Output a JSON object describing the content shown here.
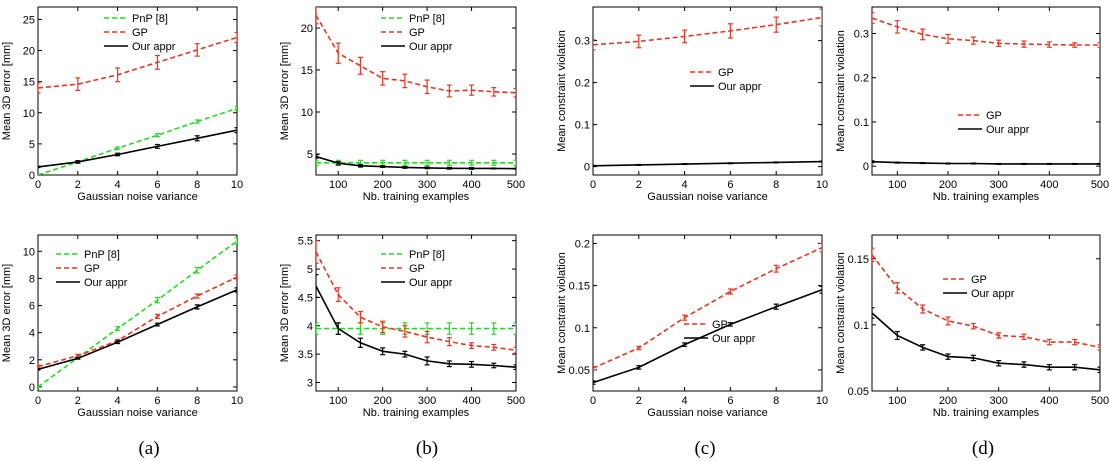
{
  "colors": {
    "pnp": "#22dd22",
    "gp": "#ee3322",
    "ours": "#000000"
  },
  "legend_labels": {
    "pnp": "PnP [8]",
    "gp": "GP",
    "ours": "Our appr"
  },
  "captions": [
    "(a)",
    "(b)",
    "(c)",
    "(d)"
  ],
  "chart_data": [
    {
      "type": "line",
      "xlabel": "Gaussian noise variance",
      "ylabel": "Mean 3D error [mm]",
      "xlim": [
        0,
        10
      ],
      "ylim": [
        0,
        27
      ],
      "xticks": [
        0,
        2,
        4,
        6,
        8,
        10
      ],
      "yticks": [
        0,
        5,
        10,
        15,
        20,
        25
      ],
      "legend": "top-right",
      "series": [
        {
          "key": "pnp",
          "name": "PnP [8]",
          "x": [
            0,
            2,
            4,
            6,
            8,
            10
          ],
          "values": [
            0,
            2.1,
            4.3,
            6.4,
            8.6,
            10.7
          ],
          "err": [
            0.1,
            0.15,
            0.2,
            0.25,
            0.25,
            0.3
          ]
        },
        {
          "key": "gp",
          "name": "GP",
          "x": [
            0,
            2,
            4,
            6,
            8,
            10
          ],
          "values": [
            14.0,
            14.6,
            16.1,
            18.1,
            20.1,
            22.1
          ],
          "err": [
            0.8,
            1.0,
            1.1,
            1.1,
            1.0,
            0.8
          ]
        },
        {
          "key": "ours",
          "name": "Our appr",
          "x": [
            0,
            2,
            4,
            6,
            8,
            10
          ],
          "values": [
            1.3,
            2.1,
            3.3,
            4.6,
            5.9,
            7.2
          ],
          "err": [
            0.1,
            0.2,
            0.2,
            0.3,
            0.4,
            0.4
          ]
        }
      ]
    },
    {
      "type": "line",
      "xlabel": "Nb. training examples",
      "ylabel": "Mean 3D error [mm]",
      "xlim": [
        50,
        500
      ],
      "ylim": [
        2.5,
        22.5
      ],
      "xticks": [
        100,
        200,
        300,
        400,
        500
      ],
      "yticks": [
        5,
        10,
        15,
        20
      ],
      "legend": "top-right",
      "series": [
        {
          "key": "pnp",
          "name": "PnP [8]",
          "x": [
            50,
            100,
            150,
            200,
            250,
            300,
            350,
            400,
            450,
            500
          ],
          "values": [
            3.95,
            3.95,
            3.95,
            3.95,
            3.95,
            3.95,
            3.95,
            3.95,
            3.95,
            3.95
          ],
          "err": [
            0.3,
            0.3,
            0.3,
            0.3,
            0.3,
            0.3,
            0.3,
            0.3,
            0.3,
            0.3
          ]
        },
        {
          "key": "gp",
          "name": "GP",
          "x": [
            50,
            100,
            150,
            200,
            250,
            300,
            350,
            400,
            450,
            500
          ],
          "values": [
            21.5,
            17.0,
            15.5,
            14.0,
            13.7,
            13.0,
            12.5,
            12.6,
            12.4,
            12.3
          ],
          "err": [
            1.0,
            1.2,
            1.0,
            0.8,
            0.8,
            0.8,
            0.7,
            0.6,
            0.5,
            0.5
          ]
        },
        {
          "key": "ours",
          "name": "Our appr",
          "x": [
            50,
            100,
            150,
            200,
            250,
            300,
            350,
            400,
            450,
            500
          ],
          "values": [
            4.7,
            3.9,
            3.6,
            3.5,
            3.4,
            3.35,
            3.3,
            3.28,
            3.28,
            3.25
          ],
          "err": [
            0.2,
            0.2,
            0.15,
            0.1,
            0.1,
            0.1,
            0.1,
            0.1,
            0.05,
            0.05
          ]
        }
      ]
    },
    {
      "type": "line",
      "xlabel": "Gaussian noise variance",
      "ylabel": "Mean constraint violation",
      "xlim": [
        0,
        10
      ],
      "ylim": [
        -0.02,
        0.38
      ],
      "xticks": [
        0,
        2,
        4,
        6,
        8,
        10
      ],
      "yticks": [
        0,
        0.1,
        0.2,
        0.3
      ],
      "legend": "center-right",
      "series": [
        {
          "key": "gp",
          "name": "GP",
          "x": [
            0,
            2,
            4,
            6,
            8,
            10
          ],
          "values": [
            0.29,
            0.298,
            0.31,
            0.323,
            0.338,
            0.355
          ],
          "err": [
            0.012,
            0.015,
            0.015,
            0.017,
            0.018,
            0.02
          ]
        },
        {
          "key": "ours",
          "name": "Our appr",
          "x": [
            0,
            2,
            4,
            6,
            8,
            10
          ],
          "values": [
            0.002,
            0.004,
            0.006,
            0.008,
            0.01,
            0.012
          ],
          "err": [
            0.001,
            0.001,
            0.001,
            0.001,
            0.001,
            0.001
          ]
        }
      ]
    },
    {
      "type": "line",
      "xlabel": "Nb. training examples",
      "ylabel": "Mean constraint violation",
      "xlim": [
        50,
        500
      ],
      "ylim": [
        -0.02,
        0.36
      ],
      "xticks": [
        100,
        200,
        300,
        400,
        500
      ],
      "yticks": [
        0,
        0.1,
        0.2,
        0.3
      ],
      "legend": "center-right",
      "series": [
        {
          "key": "gp",
          "name": "GP",
          "x": [
            50,
            100,
            150,
            200,
            250,
            300,
            350,
            400,
            450,
            500
          ],
          "values": [
            0.335,
            0.315,
            0.298,
            0.288,
            0.284,
            0.278,
            0.276,
            0.275,
            0.274,
            0.274
          ],
          "err": [
            0.012,
            0.014,
            0.012,
            0.01,
            0.008,
            0.007,
            0.007,
            0.006,
            0.005,
            0.005
          ]
        },
        {
          "key": "ours",
          "name": "Our appr",
          "x": [
            50,
            100,
            150,
            200,
            250,
            300,
            350,
            400,
            450,
            500
          ],
          "values": [
            0.01,
            0.008,
            0.007,
            0.006,
            0.006,
            0.005,
            0.005,
            0.005,
            0.005,
            0.005
          ],
          "err": [
            0.002,
            0.001,
            0.001,
            0.001,
            0.001,
            0.001,
            0.001,
            0.001,
            0.001,
            0.001
          ]
        }
      ]
    },
    {
      "type": "line",
      "xlabel": "Gaussian noise variance",
      "ylabel": "Mean 3D error [mm]",
      "xlim": [
        0,
        10
      ],
      "ylim": [
        -0.3,
        11.2
      ],
      "xticks": [
        0,
        2,
        4,
        6,
        8,
        10
      ],
      "yticks": [
        0,
        2,
        4,
        6,
        8,
        10
      ],
      "legend": "top-left",
      "series": [
        {
          "key": "pnp",
          "name": "PnP [8]",
          "x": [
            0,
            2,
            4,
            6,
            8,
            10
          ],
          "values": [
            0,
            2.15,
            4.3,
            6.4,
            8.6,
            10.75
          ],
          "err": [
            0.05,
            0.1,
            0.15,
            0.2,
            0.2,
            0.25
          ]
        },
        {
          "key": "gp",
          "name": "GP",
          "x": [
            0,
            2,
            4,
            6,
            8,
            10
          ],
          "values": [
            1.5,
            2.3,
            3.4,
            5.2,
            6.7,
            8.1
          ],
          "err": [
            0.1,
            0.1,
            0.1,
            0.15,
            0.15,
            0.15
          ]
        },
        {
          "key": "ours",
          "name": "Our appr",
          "x": [
            0,
            2,
            4,
            6,
            8,
            10
          ],
          "values": [
            1.3,
            2.1,
            3.3,
            4.6,
            5.9,
            7.15
          ],
          "err": [
            0.05,
            0.05,
            0.1,
            0.1,
            0.15,
            0.15
          ]
        }
      ]
    },
    {
      "type": "line",
      "xlabel": "Nb. training examples",
      "ylabel": "Mean 3D error [mm]",
      "xlim": [
        50,
        500
      ],
      "ylim": [
        2.85,
        5.6
      ],
      "xticks": [
        100,
        200,
        300,
        400,
        500
      ],
      "yticks": [
        3,
        3.5,
        4,
        4.5,
        5,
        5.5
      ],
      "legend": "top-right",
      "series": [
        {
          "key": "pnp",
          "name": "PnP [8]",
          "x": [
            50,
            100,
            150,
            200,
            250,
            300,
            350,
            400,
            450,
            500
          ],
          "values": [
            3.95,
            3.95,
            3.95,
            3.95,
            3.95,
            3.95,
            3.95,
            3.95,
            3.95,
            3.95
          ],
          "err": [
            0.1,
            0.1,
            0.1,
            0.1,
            0.1,
            0.1,
            0.1,
            0.1,
            0.1,
            0.1
          ]
        },
        {
          "key": "gp",
          "name": "GP",
          "x": [
            50,
            100,
            150,
            200,
            250,
            300,
            350,
            400,
            450,
            500
          ],
          "values": [
            5.3,
            4.55,
            4.15,
            3.98,
            3.9,
            3.8,
            3.72,
            3.65,
            3.62,
            3.57
          ],
          "err": [
            0.2,
            0.12,
            0.1,
            0.1,
            0.1,
            0.1,
            0.07,
            0.05,
            0.05,
            0.05
          ]
        },
        {
          "key": "ours",
          "name": "Our appr",
          "x": [
            50,
            100,
            150,
            200,
            250,
            300,
            350,
            400,
            450,
            500
          ],
          "values": [
            4.7,
            3.95,
            3.7,
            3.55,
            3.5,
            3.38,
            3.33,
            3.32,
            3.3,
            3.27
          ],
          "err": [
            0.2,
            0.1,
            0.08,
            0.06,
            0.05,
            0.07,
            0.05,
            0.05,
            0.04,
            0.04
          ]
        }
      ]
    },
    {
      "type": "line",
      "xlabel": "Gaussian noise variance",
      "ylabel": "Mean constraint violation",
      "xlim": [
        0,
        10
      ],
      "ylim": [
        0.025,
        0.21
      ],
      "xticks": [
        0,
        2,
        4,
        6,
        8,
        10
      ],
      "yticks": [
        0.05,
        0.1,
        0.15,
        0.2
      ],
      "legend": "bottom-right",
      "series": [
        {
          "key": "gp",
          "name": "GP",
          "x": [
            0,
            2,
            4,
            6,
            8,
            10
          ],
          "values": [
            0.052,
            0.076,
            0.112,
            0.143,
            0.17,
            0.195
          ],
          "err": [
            0.002,
            0.002,
            0.003,
            0.003,
            0.004,
            0.005
          ]
        },
        {
          "key": "ours",
          "name": "Our appr",
          "x": [
            0,
            2,
            4,
            6,
            8,
            10
          ],
          "values": [
            0.035,
            0.053,
            0.08,
            0.104,
            0.125,
            0.145
          ],
          "err": [
            0.002,
            0.002,
            0.002,
            0.002,
            0.003,
            0.004
          ]
        }
      ]
    },
    {
      "type": "line",
      "xlabel": "Nb. training examples",
      "ylabel": "Mean constraint violation",
      "xlim": [
        50,
        500
      ],
      "ylim": [
        0.05,
        0.168
      ],
      "xticks": [
        100,
        200,
        300,
        400,
        500
      ],
      "yticks": [
        0.05,
        0.1,
        0.15
      ],
      "legend": "top-right",
      "series": [
        {
          "key": "gp",
          "name": "GP",
          "x": [
            50,
            100,
            150,
            200,
            250,
            300,
            350,
            400,
            450,
            500
          ],
          "values": [
            0.153,
            0.128,
            0.112,
            0.103,
            0.099,
            0.092,
            0.091,
            0.087,
            0.087,
            0.083
          ],
          "err": [
            0.005,
            0.004,
            0.003,
            0.003,
            0.002,
            0.002,
            0.002,
            0.002,
            0.002,
            0.002
          ]
        },
        {
          "key": "ours",
          "name": "Our appr",
          "x": [
            50,
            100,
            150,
            200,
            250,
            300,
            350,
            400,
            450,
            500
          ],
          "values": [
            0.109,
            0.092,
            0.083,
            0.076,
            0.075,
            0.071,
            0.07,
            0.068,
            0.068,
            0.066
          ],
          "err": [
            0.004,
            0.003,
            0.002,
            0.002,
            0.002,
            0.002,
            0.002,
            0.002,
            0.002,
            0.002
          ]
        }
      ]
    }
  ]
}
